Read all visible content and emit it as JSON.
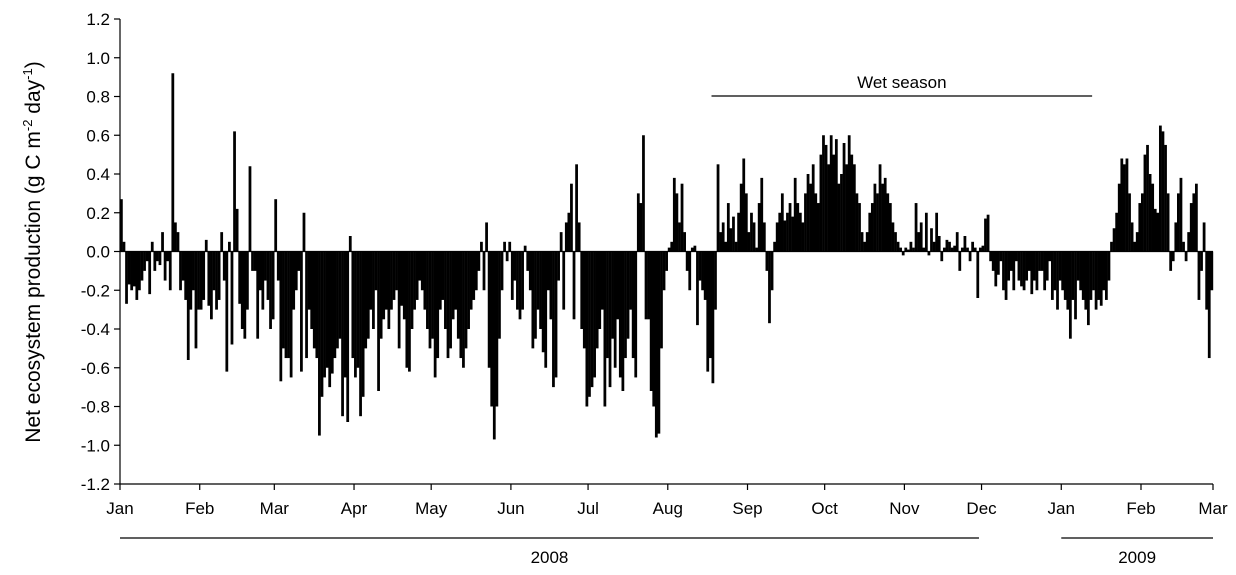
{
  "chart_data": {
    "type": "bar",
    "y_label": [
      "Net ecosystem production (g C m",
      "-2",
      " day",
      "-1",
      ")"
    ],
    "color": "#000000",
    "xlim": [
      0,
      425
    ],
    "xticks": [
      {
        "value": 0,
        "label": "Jan"
      },
      {
        "value": 31,
        "label": "Feb"
      },
      {
        "value": 60,
        "label": "Mar"
      },
      {
        "value": 91,
        "label": "Apr"
      },
      {
        "value": 121,
        "label": "May"
      },
      {
        "value": 152,
        "label": "Jun"
      },
      {
        "value": 182,
        "label": "Jul"
      },
      {
        "value": 213,
        "label": "Aug"
      },
      {
        "value": 244,
        "label": "Sep"
      },
      {
        "value": 274,
        "label": "Oct"
      },
      {
        "value": 305,
        "label": "Nov"
      },
      {
        "value": 335,
        "label": "Dec"
      },
      {
        "value": 366,
        "label": "Jan"
      },
      {
        "value": 397,
        "label": "Feb"
      },
      {
        "value": 425,
        "label": "Mar"
      }
    ],
    "ylim": [
      -1.2,
      1.2
    ],
    "yticks": [
      -1.2,
      {
        "value": -1.0,
        "label": "-1.0"
      },
      -0.8,
      -0.6,
      -0.4,
      -0.2,
      {
        "value": 0,
        "label": "0.0"
      },
      0.2,
      0.4,
      0.6,
      0.8,
      {
        "value": 1.0,
        "label": "1.0"
      },
      1.2
    ],
    "wet_season": {
      "label": "Wet season",
      "start": 230,
      "end": 378
    },
    "years": [
      {
        "label": "2008",
        "start": 0,
        "end": 334
      },
      {
        "label": "2009",
        "start": 366,
        "end": 425
      }
    ],
    "values": [
      0.27,
      0.05,
      -0.27,
      -0.17,
      -0.2,
      -0.18,
      -0.25,
      -0.2,
      -0.15,
      -0.1,
      -0.05,
      -0.22,
      0.05,
      -0.1,
      -0.05,
      -0.07,
      0.1,
      -0.15,
      -0.05,
      -0.2,
      0.92,
      0.15,
      0.1,
      -0.2,
      -0.15,
      -0.25,
      -0.56,
      -0.3,
      -0.2,
      -0.5,
      -0.3,
      -0.3,
      -0.25,
      0.06,
      -0.28,
      -0.35,
      -0.2,
      -0.3,
      -0.25,
      0.1,
      -0.15,
      -0.62,
      0.05,
      -0.48,
      0.62,
      0.22,
      -0.27,
      -0.4,
      -0.45,
      -0.3,
      0.44,
      -0.1,
      -0.1,
      -0.45,
      -0.2,
      -0.3,
      -0.15,
      -0.25,
      -0.4,
      -0.35,
      0.27,
      -0.15,
      -0.67,
      -0.5,
      -0.55,
      -0.55,
      -0.65,
      -0.3,
      -0.2,
      -0.1,
      -0.62,
      0.2,
      -0.55,
      -0.3,
      -0.4,
      -0.5,
      -0.55,
      -0.95,
      -0.75,
      -0.65,
      -0.6,
      -0.7,
      -0.63,
      -0.55,
      -0.5,
      -0.45,
      -0.85,
      -0.65,
      -0.88,
      0.08,
      -0.55,
      -0.65,
      -0.6,
      -0.85,
      -0.75,
      -0.5,
      -0.45,
      -0.3,
      -0.4,
      -0.2,
      -0.72,
      -0.45,
      -0.35,
      -0.3,
      -0.4,
      -0.3,
      -0.25,
      -0.2,
      -0.5,
      -0.28,
      -0.35,
      -0.6,
      -0.62,
      -0.4,
      -0.3,
      -0.25,
      -0.15,
      -0.2,
      -0.3,
      -0.4,
      -0.5,
      -0.45,
      -0.65,
      -0.55,
      -0.3,
      -0.25,
      -0.4,
      -0.55,
      -0.5,
      -0.35,
      -0.3,
      -0.45,
      -0.55,
      -0.6,
      -0.5,
      -0.4,
      -0.3,
      -0.25,
      -0.2,
      -0.1,
      0.05,
      -0.2,
      0.15,
      -0.6,
      -0.8,
      -0.97,
      -0.8,
      -0.45,
      -0.2,
      0.05,
      -0.05,
      0.05,
      -0.25,
      -0.15,
      -0.3,
      -0.35,
      -0.3,
      0.03,
      -0.1,
      -0.2,
      -0.5,
      -0.45,
      -0.3,
      -0.4,
      -0.52,
      -0.6,
      -0.2,
      -0.35,
      -0.7,
      -0.65,
      -0.15,
      0.1,
      -0.3,
      0.15,
      0.2,
      0.35,
      -0.35,
      0.45,
      0.15,
      -0.4,
      -0.5,
      -0.8,
      -0.75,
      -0.7,
      -0.65,
      -0.5,
      -0.4,
      -0.3,
      -0.8,
      -0.55,
      -0.7,
      -0.45,
      -0.6,
      -0.35,
      -0.65,
      -0.72,
      -0.55,
      -0.45,
      -0.3,
      -0.55,
      -0.65,
      0.3,
      0.25,
      0.6,
      -0.35,
      -0.35,
      -0.72,
      -0.8,
      -0.96,
      -0.94,
      -0.5,
      -0.2,
      -0.1,
      0.02,
      0.05,
      0.38,
      0.3,
      0.15,
      0.35,
      0.1,
      -0.1,
      -0.2,
      0.02,
      0.03,
      -0.38,
      -0.15,
      -0.2,
      -0.25,
      -0.62,
      -0.55,
      -0.68,
      -0.3,
      0.45,
      0.1,
      0.15,
      0.05,
      0.25,
      0.12,
      0.18,
      0.05,
      0.2,
      0.35,
      0.48,
      0.3,
      0.1,
      0.2,
      0.15,
      0.02,
      0.25,
      0.38,
      0.15,
      -0.1,
      -0.37,
      -0.2,
      0.05,
      0.15,
      0.2,
      0.3,
      0.16,
      0.2,
      0.25,
      0.18,
      0.38,
      0.25,
      0.2,
      0.15,
      0.3,
      0.4,
      0.35,
      0.45,
      0.3,
      0.25,
      0.5,
      0.6,
      0.55,
      0.45,
      0.6,
      0.5,
      0.58,
      0.35,
      0.4,
      0.56,
      0.45,
      0.6,
      0.5,
      0.45,
      0.3,
      0.25,
      0.1,
      0.05,
      0.1,
      0.2,
      0.25,
      0.35,
      0.3,
      0.45,
      0.35,
      0.38,
      0.3,
      0.25,
      0.15,
      0.1,
      0.05,
      0.02,
      -0.02,
      0.02,
      0.01,
      0.05,
      0.02,
      0.25,
      0.1,
      0.15,
      0.02,
      0.2,
      -0.02,
      0.12,
      0.05,
      0.2,
      0.08,
      -0.05,
      0.02,
      0.06,
      0.05,
      0.02,
      0.03,
      0.1,
      -0.1,
      0.02,
      0.08,
      0.02,
      -0.05,
      0.05,
      0.02,
      -0.24,
      0.02,
      0.03,
      0.17,
      0.19,
      -0.05,
      -0.1,
      -0.18,
      -0.12,
      -0.05,
      -0.2,
      -0.25,
      -0.15,
      -0.1,
      -0.2,
      -0.05,
      -0.15,
      -0.18,
      -0.2,
      -0.15,
      -0.1,
      -0.22,
      -0.15,
      -0.2,
      -0.1,
      -0.1,
      -0.2,
      -0.15,
      -0.05,
      -0.25,
      -0.2,
      -0.3,
      -0.15,
      -0.2,
      -0.25,
      -0.3,
      -0.45,
      -0.25,
      -0.35,
      -0.15,
      -0.2,
      -0.25,
      -0.3,
      -0.38,
      -0.25,
      -0.2,
      -0.3,
      -0.25,
      -0.28,
      -0.2,
      -0.25,
      -0.15,
      0.05,
      0.12,
      0.2,
      0.35,
      0.48,
      0.45,
      0.48,
      0.3,
      0.15,
      0.05,
      0.1,
      0.25,
      0.3,
      0.5,
      0.55,
      0.4,
      0.35,
      0.22,
      0.2,
      0.65,
      0.62,
      0.55,
      0.3,
      -0.1,
      -0.05,
      0.15,
      0.3,
      0.38,
      0.05,
      -0.05,
      0.1,
      0.25,
      0.3,
      0.35,
      -0.25,
      -0.1,
      0.15,
      -0.3,
      -0.55,
      -0.2
    ]
  }
}
